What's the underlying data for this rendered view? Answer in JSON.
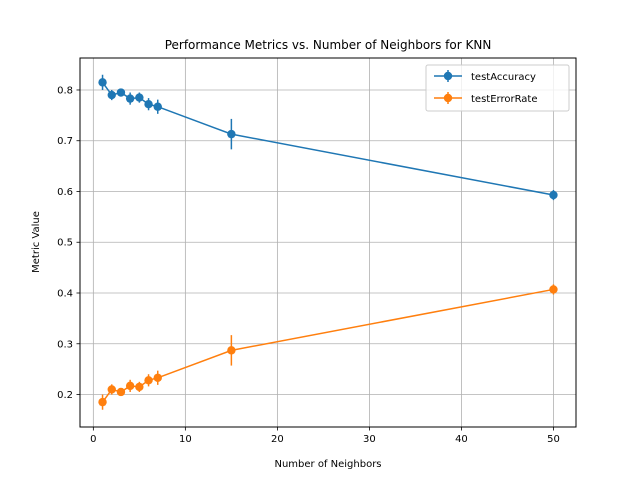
{
  "chart_data": {
    "type": "line",
    "title": "Performance Metrics vs. Number of Neighbors for KNN",
    "xlabel": "Number of Neighbors",
    "ylabel": "Metric Value",
    "xlim": [
      -1.45,
      52.45
    ],
    "ylim": [
      0.136,
      0.863
    ],
    "xticks": [
      0,
      10,
      20,
      30,
      40,
      50
    ],
    "yticks": [
      0.2,
      0.3,
      0.4,
      0.5,
      0.6,
      0.7,
      0.8
    ],
    "grid": true,
    "legend_position": "top-right",
    "x": [
      1,
      2,
      3,
      4,
      5,
      6,
      7,
      15,
      50
    ],
    "series": [
      {
        "name": "testAccuracy",
        "color": "#1f77b4",
        "values": [
          0.815,
          0.79,
          0.795,
          0.783,
          0.785,
          0.772,
          0.767,
          0.713,
          0.593
        ],
        "errors": [
          0.015,
          0.01,
          0.007,
          0.012,
          0.01,
          0.012,
          0.014,
          0.03,
          0.01
        ]
      },
      {
        "name": "testErrorRate",
        "color": "#ff7f0e",
        "values": [
          0.185,
          0.21,
          0.205,
          0.217,
          0.215,
          0.228,
          0.233,
          0.287,
          0.407
        ],
        "errors": [
          0.015,
          0.01,
          0.007,
          0.012,
          0.01,
          0.012,
          0.014,
          0.03,
          0.01
        ]
      }
    ]
  }
}
